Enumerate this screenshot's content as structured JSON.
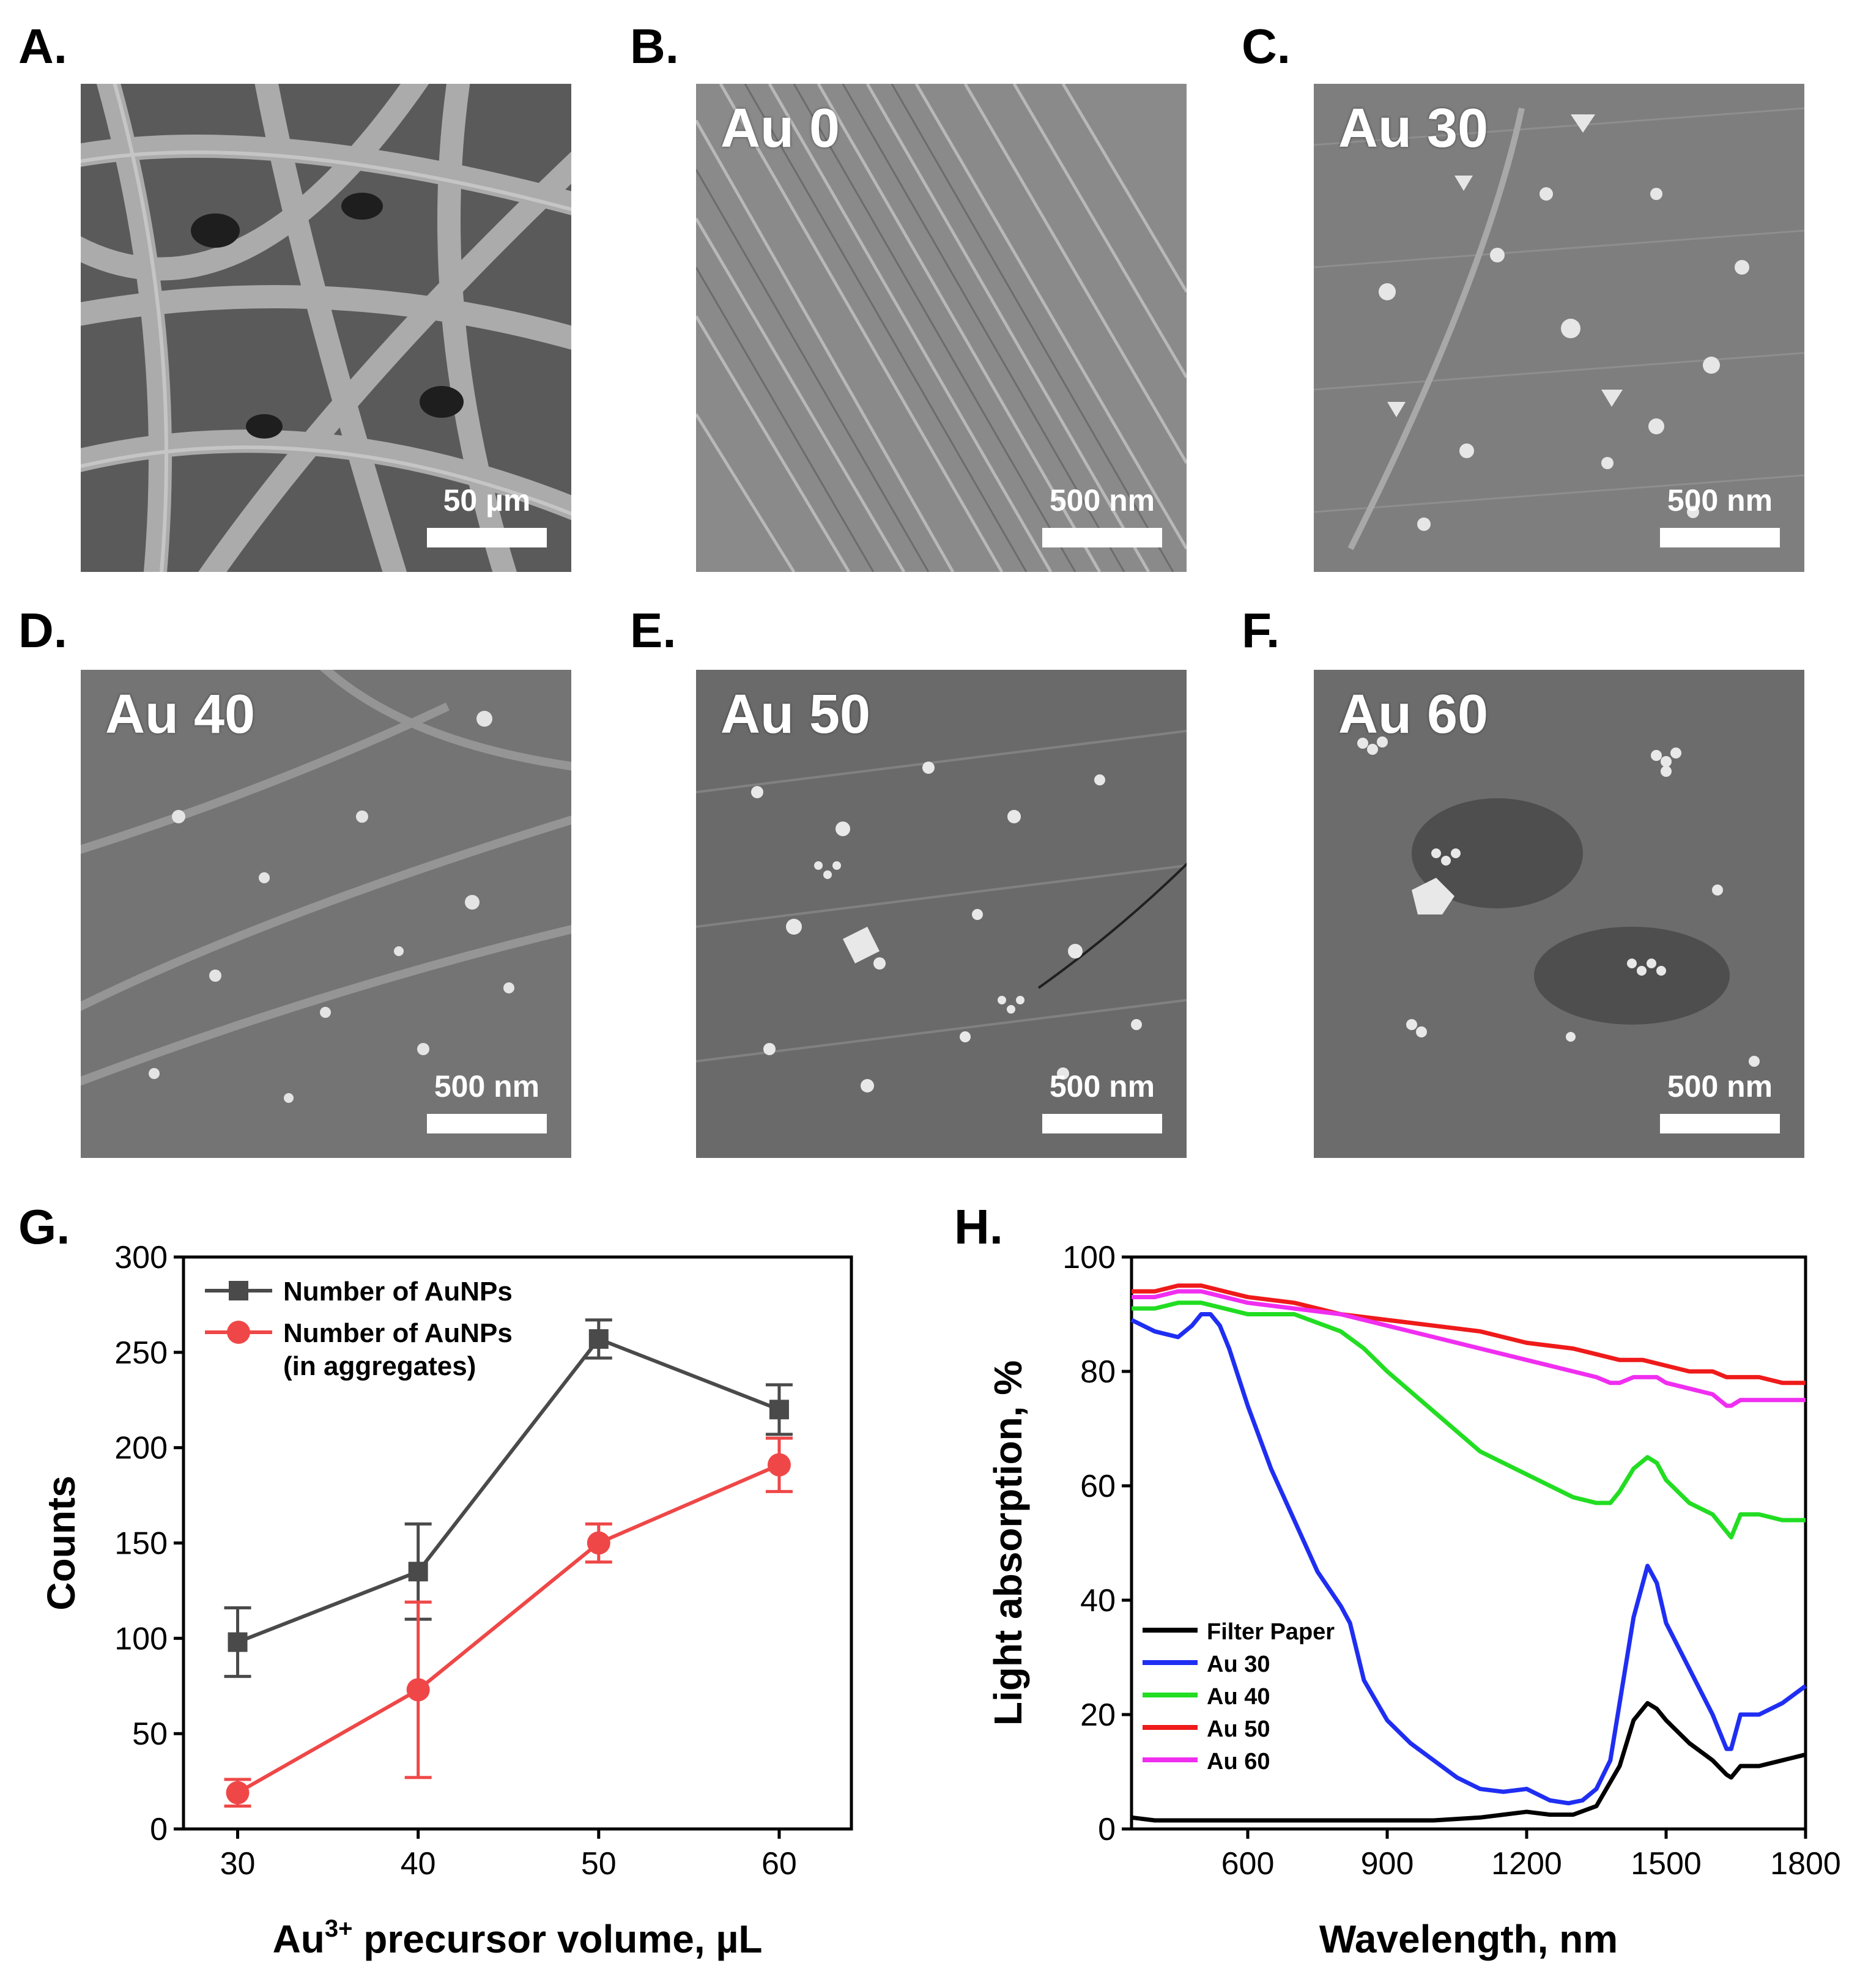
{
  "panels": {
    "a": {
      "letter": "A.",
      "scale": "50 µm"
    },
    "b": {
      "letter": "B.",
      "label": "Au 0",
      "scale": "500 nm"
    },
    "c": {
      "letter": "C.",
      "label": "Au 30",
      "scale": "500 nm"
    },
    "d": {
      "letter": "D.",
      "label": "Au 40",
      "scale": "500 nm"
    },
    "e": {
      "letter": "E.",
      "label": "Au 50",
      "scale": "500 nm"
    },
    "f": {
      "letter": "F.",
      "label": "Au 60",
      "scale": "500 nm"
    },
    "g": {
      "letter": "G."
    },
    "h": {
      "letter": "H."
    }
  },
  "chart_data": [
    {
      "type": "line",
      "panel": "G",
      "title": "",
      "xlabel_base": "Au",
      "xlabel_sup": "3+",
      "xlabel_rest": " precursor volume, µL",
      "ylabel": "Counts",
      "xlim": [
        27,
        64
      ],
      "ylim": [
        0,
        300
      ],
      "xticks": [
        "30",
        "40",
        "50",
        "60"
      ],
      "yticks": [
        "0",
        "50",
        "100",
        "150",
        "200",
        "250",
        "300"
      ],
      "legend_position": "top-left",
      "series": [
        {
          "name": "Number of AuNPs",
          "color": "#4a4a4a",
          "marker": "square",
          "x": [
            30,
            40,
            50,
            60
          ],
          "y": [
            98,
            135,
            257,
            220
          ],
          "err": [
            18,
            25,
            10,
            13
          ]
        },
        {
          "name": "Number of AuNPs",
          "name_line2": "(in aggregates)",
          "color": "#ef4747",
          "marker": "circle",
          "x": [
            30,
            40,
            50,
            60
          ],
          "y": [
            19,
            73,
            150,
            191
          ],
          "err": [
            7,
            46,
            10,
            14
          ]
        }
      ]
    },
    {
      "type": "line",
      "panel": "H",
      "title": "",
      "xlabel": "Wavelength, nm",
      "ylabel": "Light absorption, %",
      "xlim": [
        350,
        1800
      ],
      "ylim": [
        0,
        100
      ],
      "xticks": [
        "600",
        "900",
        "1200",
        "1500",
        "1800"
      ],
      "yticks": [
        "0",
        "20",
        "40",
        "60",
        "80",
        "100"
      ],
      "legend_position": "bottom-left",
      "series": [
        {
          "name": "Filter Paper",
          "color": "#000000",
          "x": [
            350,
            400,
            450,
            500,
            600,
            700,
            800,
            900,
            1000,
            1100,
            1150,
            1200,
            1250,
            1300,
            1350,
            1400,
            1430,
            1460,
            1480,
            1500,
            1550,
            1600,
            1630,
            1640,
            1660,
            1700,
            1750,
            1800
          ],
          "y": [
            2,
            1.5,
            1.5,
            1.5,
            1.5,
            1.5,
            1.5,
            1.5,
            1.5,
            2,
            2.5,
            3,
            2.5,
            2.5,
            4,
            11,
            19,
            22,
            21,
            19,
            15,
            12,
            9.5,
            9,
            11,
            11,
            12,
            13
          ]
        },
        {
          "name": "Au 30",
          "color": "#1f2ef2",
          "x": [
            350,
            400,
            450,
            480,
            500,
            520,
            540,
            560,
            600,
            650,
            700,
            750,
            800,
            820,
            850,
            900,
            950,
            1000,
            1050,
            1100,
            1150,
            1200,
            1250,
            1290,
            1320,
            1350,
            1380,
            1400,
            1430,
            1460,
            1480,
            1500,
            1550,
            1600,
            1630,
            1640,
            1660,
            1700,
            1750,
            1800
          ],
          "y": [
            89,
            87,
            86,
            88,
            90,
            90,
            88,
            84,
            74,
            63,
            54,
            45,
            39,
            36,
            26,
            19,
            15,
            12,
            9,
            7,
            6.5,
            7,
            5,
            4.5,
            5,
            7,
            12,
            22,
            37,
            46,
            43,
            36,
            28,
            20,
            14,
            14,
            20,
            20,
            22,
            25
          ]
        },
        {
          "name": "Au 40",
          "color": "#22dd22",
          "x": [
            350,
            400,
            450,
            500,
            550,
            600,
            700,
            800,
            850,
            900,
            1000,
            1100,
            1200,
            1300,
            1350,
            1380,
            1400,
            1430,
            1460,
            1480,
            1500,
            1550,
            1600,
            1630,
            1640,
            1660,
            1700,
            1750,
            1800
          ],
          "y": [
            91,
            91,
            92,
            92,
            91,
            90,
            90,
            87,
            84,
            80,
            73,
            66,
            62,
            58,
            57,
            57,
            59,
            63,
            65,
            64,
            61,
            57,
            55,
            52,
            51,
            55,
            55,
            54,
            54
          ]
        },
        {
          "name": "Au 50",
          "color": "#ef1a1a",
          "x": [
            350,
            400,
            450,
            500,
            550,
            600,
            700,
            800,
            900,
            1000,
            1100,
            1200,
            1300,
            1350,
            1400,
            1450,
            1500,
            1550,
            1600,
            1630,
            1640,
            1660,
            1700,
            1750,
            1800
          ],
          "y": [
            94,
            94,
            95,
            95,
            94,
            93,
            92,
            90,
            89,
            88,
            87,
            85,
            84,
            83,
            82,
            82,
            81,
            80,
            80,
            79,
            79,
            79,
            79,
            78,
            78
          ]
        },
        {
          "name": "Au 60",
          "color": "#f02ef0",
          "x": [
            350,
            400,
            450,
            500,
            550,
            600,
            700,
            800,
            900,
            1000,
            1100,
            1200,
            1300,
            1350,
            1380,
            1400,
            1430,
            1460,
            1480,
            1500,
            1550,
            1600,
            1630,
            1640,
            1660,
            1700,
            1750,
            1800
          ],
          "y": [
            93,
            93,
            94,
            94,
            93,
            92,
            91,
            90,
            88,
            86,
            84,
            82,
            80,
            79,
            78,
            78,
            79,
            79,
            79,
            78,
            77,
            76,
            74,
            74,
            75,
            75,
            75,
            75
          ]
        }
      ]
    }
  ]
}
